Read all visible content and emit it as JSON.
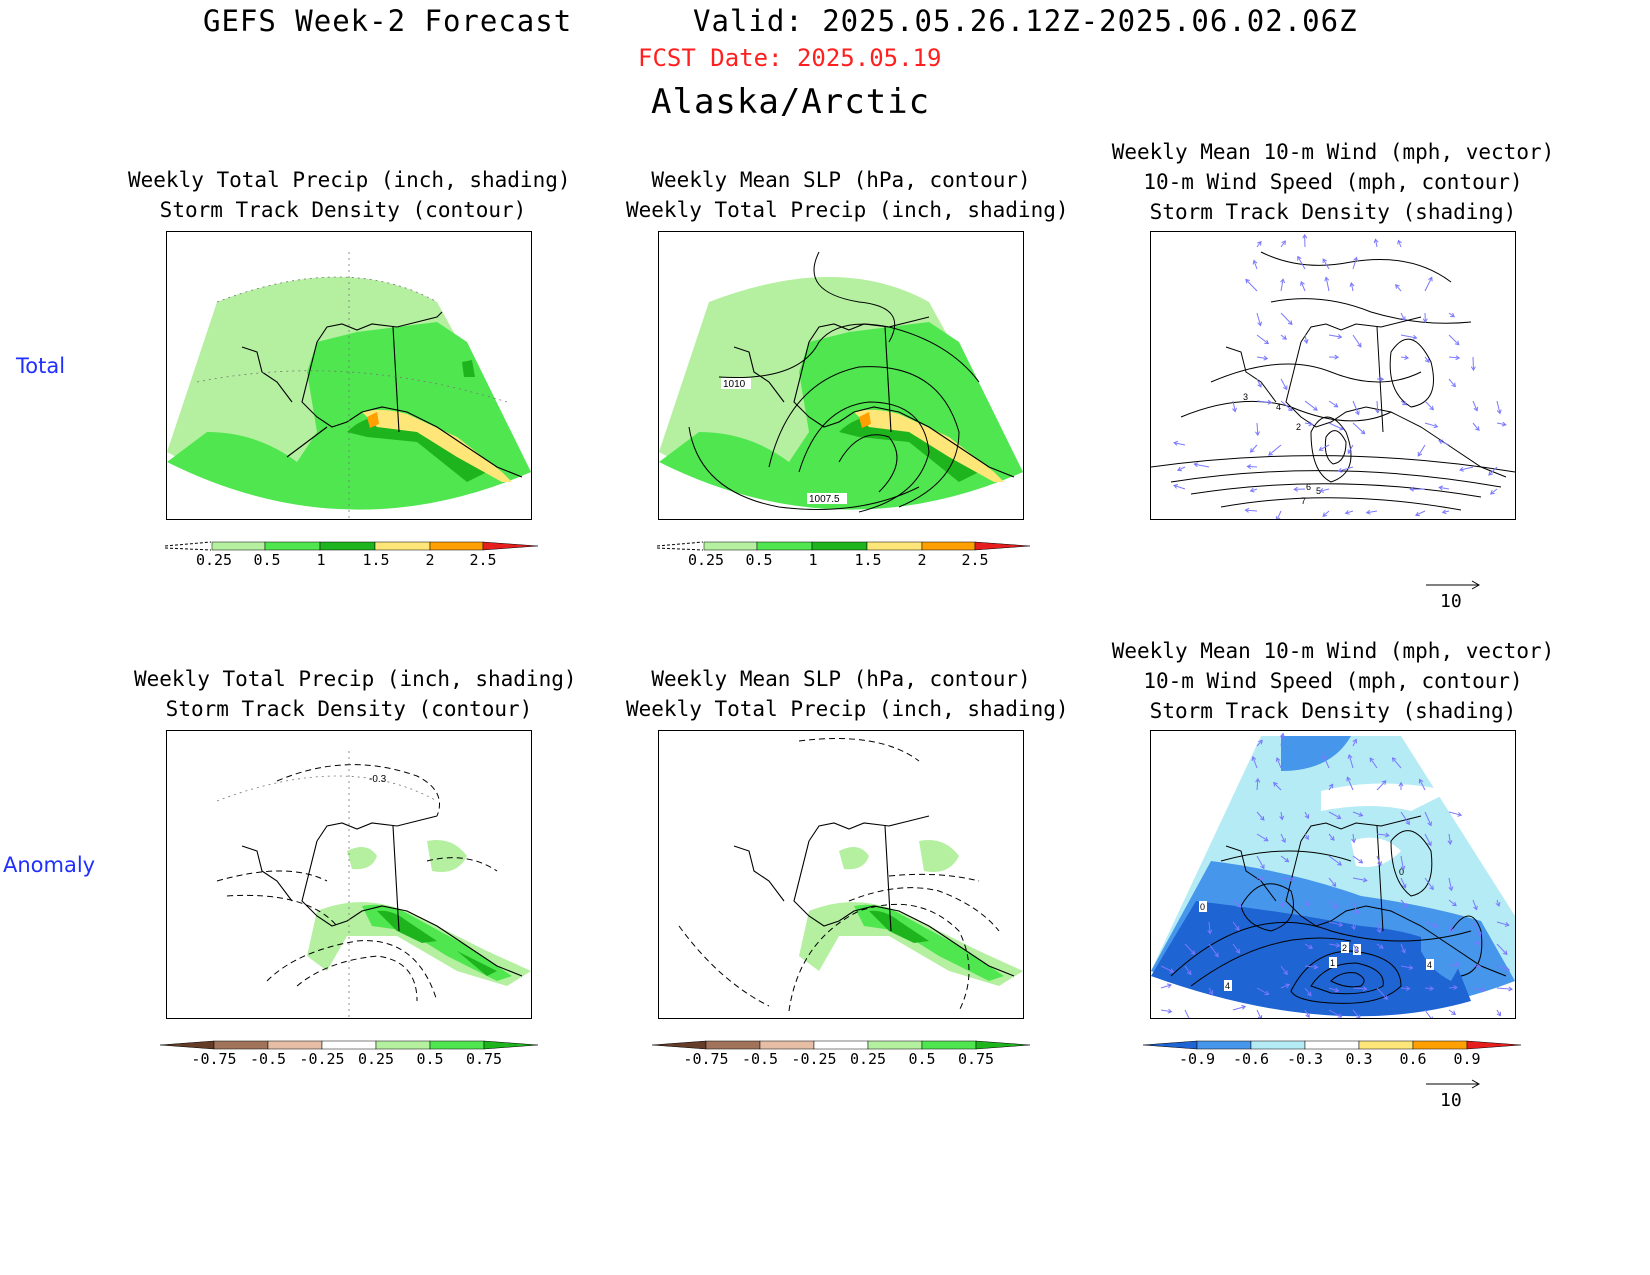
{
  "header": {
    "model_title": "GEFS Week-2 Forecast",
    "valid": "Valid: 2025.05.26.12Z-2025.06.02.06Z",
    "fcst_date": "FCST Date: 2025.05.19",
    "region": "Alaska/Arctic"
  },
  "rows": {
    "total": "Total",
    "anomaly": "Anomaly"
  },
  "panels": {
    "precip_storm": {
      "line1": "Weekly Total Precip (inch, shading)",
      "line2": "Storm Track Density (contour)"
    },
    "slp_precip": {
      "line1": "Weekly Mean SLP (hPa, contour)",
      "line2": "Weekly Total Precip (inch, shading)"
    },
    "wind": {
      "line1": "Weekly Mean 10-m Wind (mph, vector)",
      "line2": "10-m Wind Speed (mph, contour)",
      "line3": "Storm Track Density (shading)"
    }
  },
  "contour_labels": {
    "slp_1010": "1010",
    "slp_1007_5": "1007.5",
    "anom_storm": "-0.3",
    "wind_total": [
      "3",
      "4",
      "2",
      "5",
      "6",
      "7"
    ],
    "wind_anom": [
      "0",
      "0",
      "1",
      "2",
      "3",
      "4",
      "4"
    ]
  },
  "colorbars": {
    "precip_total": {
      "labels": [
        "0.25",
        "0.5",
        "1",
        "1.5",
        "2",
        "2.5"
      ],
      "colors": [
        "#ffffff",
        "#b4f0a0",
        "#50e650",
        "#1eb41e",
        "#ffe678",
        "#ffa000",
        "#e61e1e"
      ]
    },
    "precip_anom": {
      "labels": [
        "-0.75",
        "-0.5",
        "-0.25",
        "0.25",
        "0.5",
        "0.75"
      ],
      "colors": [
        "#643c28",
        "#a0735a",
        "#e6bea5",
        "#ffffff",
        "#b4f0a0",
        "#50e650",
        "#1eb41e"
      ]
    },
    "storm_anom": {
      "labels": [
        "-0.9",
        "-0.6",
        "-0.3",
        "0.3",
        "0.6",
        "0.9"
      ],
      "colors": [
        "#1e64d2",
        "#4696eb",
        "#b4ebf5",
        "#ffffff",
        "#ffe678",
        "#ffa000",
        "#e61e1e"
      ]
    }
  },
  "vector_reference": "10",
  "colors": {
    "land_coast": "#000000",
    "wind_vector": "#7a78ff",
    "fcst_date": "#ff1f1f",
    "row_label": "#1f2fff"
  }
}
